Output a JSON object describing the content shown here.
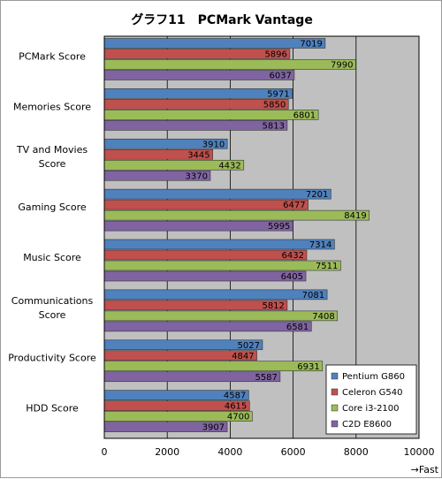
{
  "chart_data": {
    "type": "bar",
    "orientation": "horizontal",
    "title": "グラフ11　PCMark Vantage",
    "categories": [
      "PCMark Score",
      "Memories Score",
      "TV and Movies Score",
      "Gaming Score",
      "Music Score",
      "Communications Score",
      "Productivity Score",
      "HDD Score"
    ],
    "category_lines": [
      [
        "PCMark Score"
      ],
      [
        "Memories Score"
      ],
      [
        "TV and Movies",
        "Score"
      ],
      [
        "Gaming Score"
      ],
      [
        "Music Score"
      ],
      [
        "Communications",
        "Score"
      ],
      [
        "Productivity Score"
      ],
      [
        "HDD Score"
      ]
    ],
    "series": [
      {
        "name": "Pentium G860",
        "color": "#4f81bd",
        "values": [
          7019,
          5971,
          3910,
          7201,
          7314,
          7081,
          5027,
          4587
        ]
      },
      {
        "name": "Celeron G540",
        "color": "#c0504d",
        "values": [
          5896,
          5850,
          3445,
          6477,
          6432,
          5812,
          4847,
          4615
        ]
      },
      {
        "name": "Core i3-2100",
        "color": "#9bbb59",
        "values": [
          7990,
          6801,
          4432,
          8419,
          7511,
          7408,
          6931,
          4700
        ]
      },
      {
        "name": "C2D E8600",
        "color": "#8064a2",
        "values": [
          6037,
          5813,
          3370,
          5995,
          6405,
          6581,
          5587,
          3907
        ]
      }
    ],
    "xlim": [
      0,
      10000
    ],
    "xticks": [
      0,
      2000,
      4000,
      6000,
      8000,
      10000
    ],
    "xtick_labels": [
      "0",
      "2000",
      "4000",
      "6000",
      "8000",
      "10000"
    ],
    "xlabel": "→Fast",
    "grid": true,
    "legend_position": "bottom-right",
    "plot_background": "#c0c0c0"
  }
}
